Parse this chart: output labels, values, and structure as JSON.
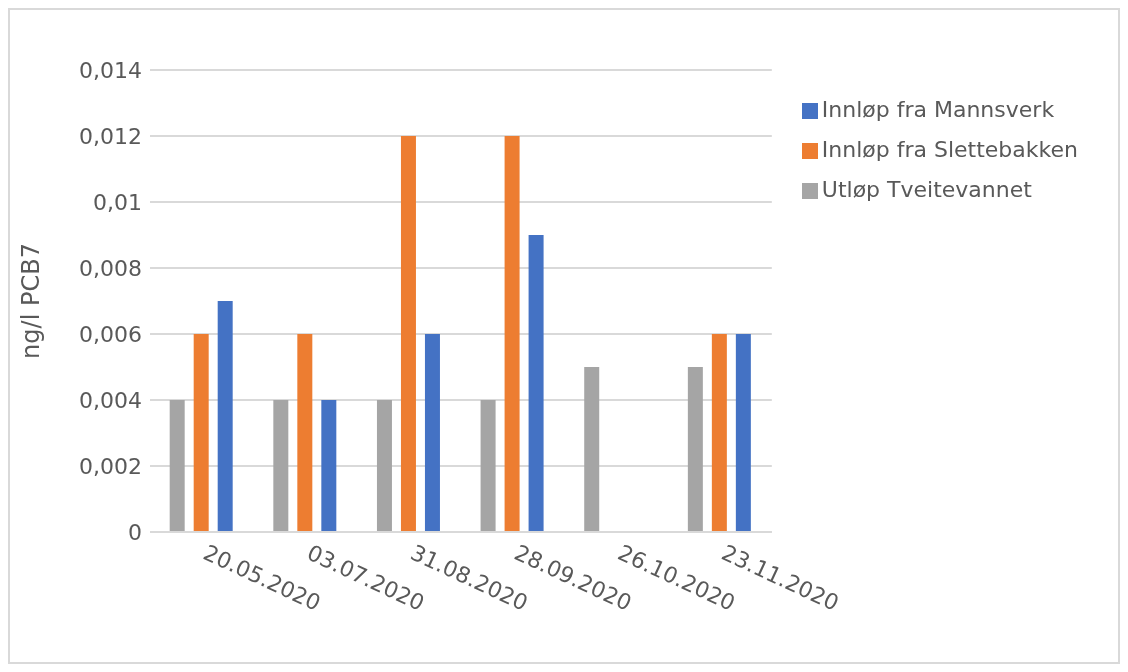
{
  "chart_data": {
    "type": "bar",
    "ylabel": "ng/l PCB7",
    "categories": [
      "20.05.2020",
      "03.07.2020",
      "31.08.2020",
      "28.09.2020",
      "26.10.2020",
      "23.11.2020"
    ],
    "series": [
      {
        "name": "Utløp Tveitevannet",
        "color": "#a5a5a5",
        "values": [
          0.004,
          0.004,
          0.004,
          0.004,
          0.005,
          0.005
        ]
      },
      {
        "name": "Innløp fra Slettebakken",
        "color": "#ed7d31",
        "values": [
          0.006,
          0.006,
          0.012,
          0.012,
          null,
          0.006
        ]
      },
      {
        "name": "Innløp fra Mannsverk",
        "color": "#4472c4",
        "values": [
          0.007,
          0.004,
          0.006,
          0.009,
          null,
          0.006
        ]
      }
    ],
    "ylim": [
      0,
      0.014
    ],
    "yticks": [
      0,
      {
        "value": 0.002,
        "label": "0,002"
      },
      {
        "value": 0.004,
        "label": "0,004"
      },
      {
        "value": 0.006,
        "label": "0,006"
      },
      {
        "value": 0.008,
        "label": "0,008"
      },
      {
        "value": 0.01,
        "label": "0,01"
      },
      {
        "value": 0.012,
        "label": "0,012"
      },
      {
        "value": 0.014,
        "label": "0,014"
      }
    ],
    "grid": "y",
    "legend": "top right"
  }
}
